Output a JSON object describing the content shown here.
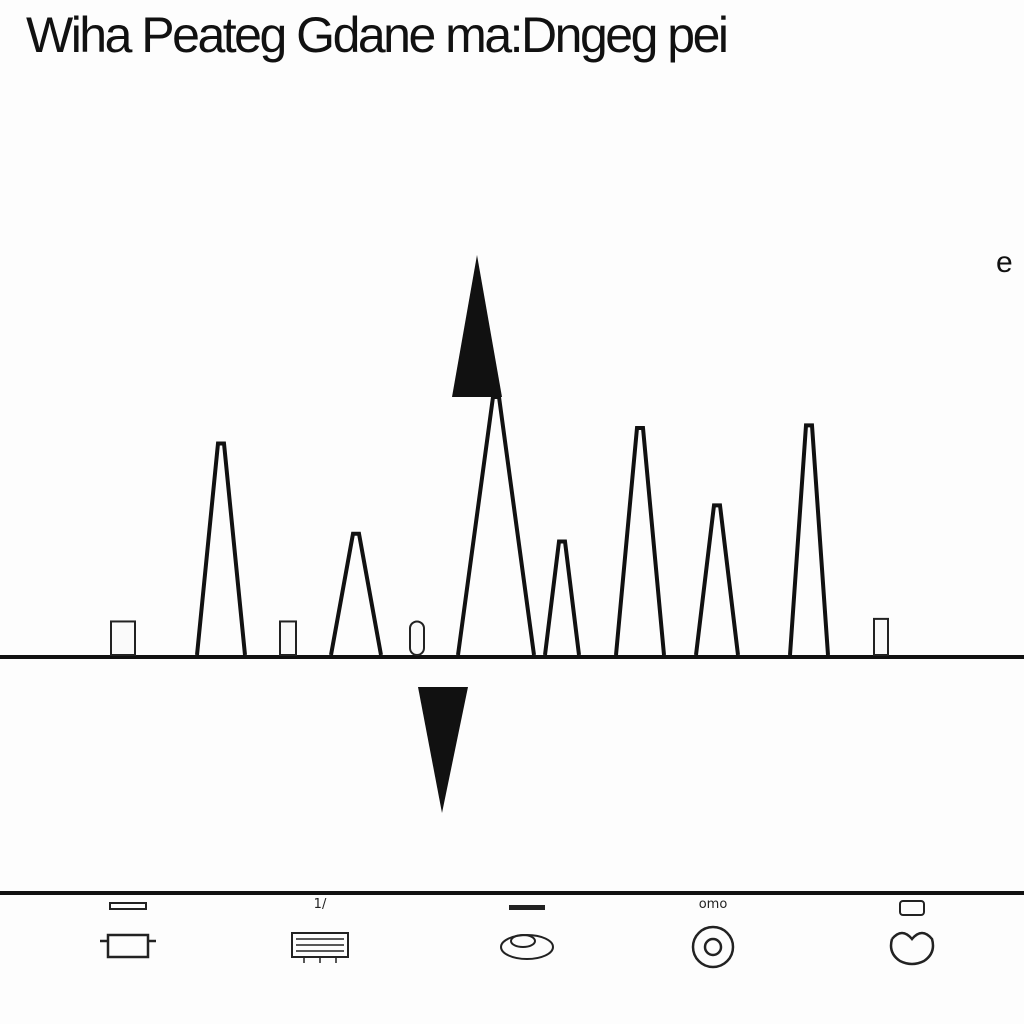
{
  "title": "Wiha Peateg Gdane ma:Dngeg pei",
  "side_label": "e",
  "peaks": [
    {
      "height": 0.82
    },
    {
      "height": 0.47
    },
    {
      "height": 1.0
    },
    {
      "height": 0.44
    },
    {
      "height": 0.88
    },
    {
      "height": 0.58
    },
    {
      "height": 0.89
    }
  ],
  "bars": [
    {
      "height": 0.13
    },
    {
      "height": 0.13
    },
    {
      "height": 0.13
    },
    {
      "height": 0.14
    }
  ],
  "markers": {
    "up": "up-arrow-marker",
    "down": "down-arrow-marker"
  },
  "icons": [
    {
      "name": "pot-icon",
      "label": ""
    },
    {
      "name": "keyboard-icon",
      "label": "1/"
    },
    {
      "name": "food-bowl-icon",
      "label": ""
    },
    {
      "name": "circle-badge-icon",
      "label": "omo"
    },
    {
      "name": "pepper-icon",
      "label": ""
    }
  ]
}
